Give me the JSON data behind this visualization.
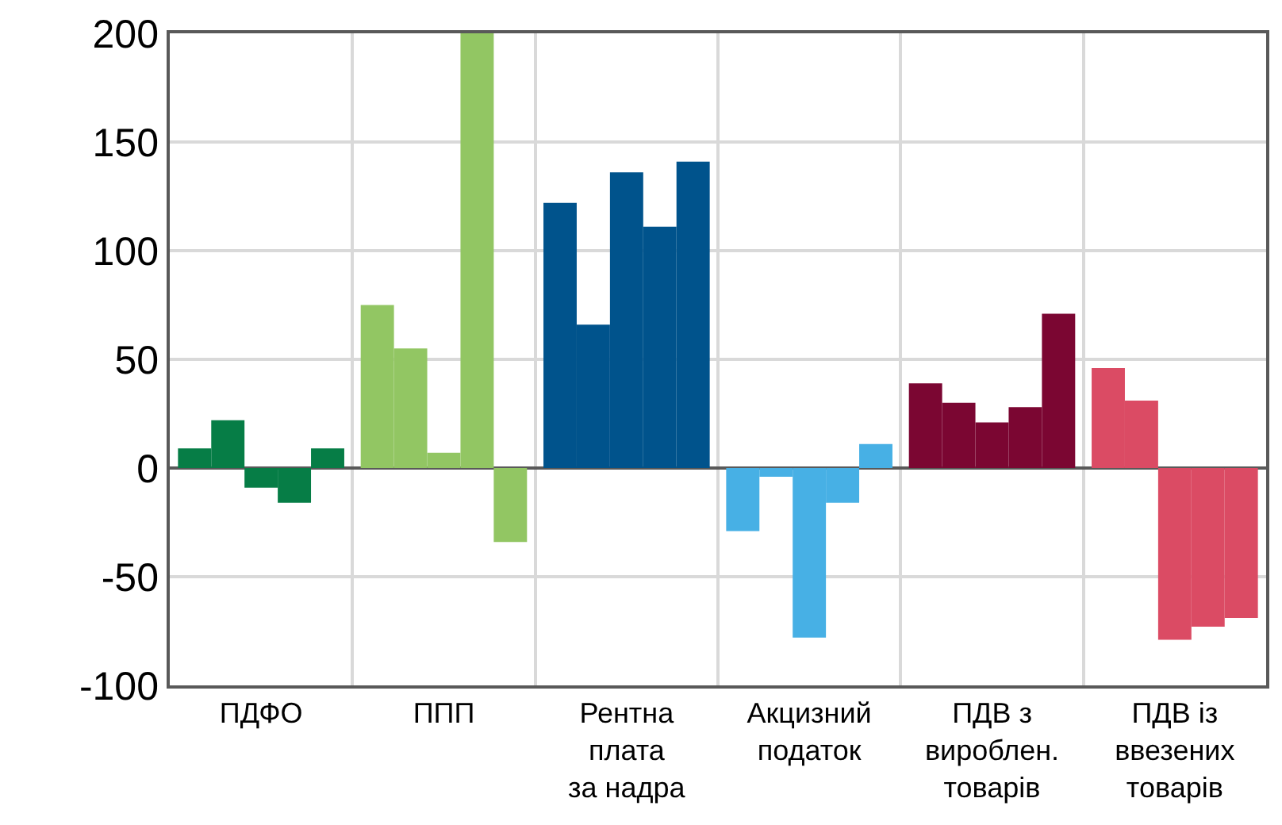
{
  "chart_data": {
    "type": "bar",
    "categories": [
      "ПДФО",
      "ППП",
      "Рентна\nплата\nза надра",
      "Акцизний\nподаток",
      "ПДВ з\nвироблен.\nтоварів",
      "ПДВ із\nввезених\nтоварів"
    ],
    "series": [
      {
        "colors": [
          "#067d46",
          "#92c663",
          "#00538c",
          "#47b0e5",
          "#7b0632",
          "#db4b64"
        ],
        "values": [
          9,
          75,
          122,
          -29,
          39,
          46
        ]
      },
      {
        "colors": [
          "#067d46",
          "#92c663",
          "#00538c",
          "#47b0e5",
          "#7b0632",
          "#db4b64"
        ],
        "values": [
          22,
          55,
          66,
          -4,
          30,
          31
        ]
      },
      {
        "colors": [
          "#067d46",
          "#92c663",
          "#00538c",
          "#47b0e5",
          "#7b0632",
          "#db4b64"
        ],
        "values": [
          -9,
          7,
          136,
          -78,
          21,
          -79
        ]
      },
      {
        "colors": [
          "#067d46",
          "#92c663",
          "#00538c",
          "#47b0e5",
          "#7b0632",
          "#db4b64"
        ],
        "values": [
          -16,
          200,
          111,
          -16,
          28,
          -73
        ]
      },
      {
        "colors": [
          "#067d46",
          "#92c663",
          "#00538c",
          "#47b0e5",
          "#7b0632",
          "#db4b64"
        ],
        "values": [
          9,
          -34,
          141,
          11,
          71,
          -69
        ]
      }
    ],
    "ylim": [
      -100,
      200
    ],
    "yticks": [
      -100,
      -50,
      0,
      50,
      100,
      150,
      200
    ],
    "grid": true
  }
}
